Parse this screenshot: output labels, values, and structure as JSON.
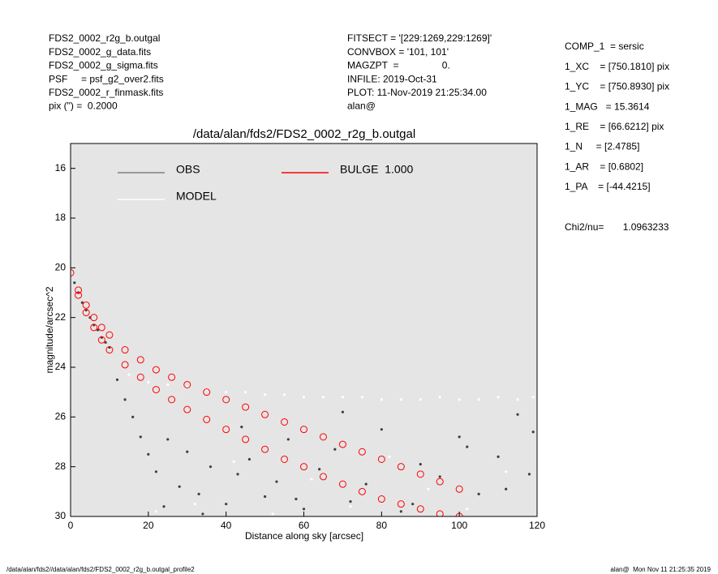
{
  "header": {
    "left": [
      "FDS2_0002_r2g_b.outgal",
      "FDS2_0002_g_data.fits",
      "FDS2_0002_g_sigma.fits",
      "PSF     = psf_g2_over2.fits",
      "FDS2_0002_r_finmask.fits",
      "pix (\") =  0.2000"
    ],
    "middle": [
      "FITSECT = '[229:1269,229:1269]'",
      "CONVBOX = '101, 101'",
      "MAGZPT  =                0.",
      "INFILE: 2019-Oct-31",
      "PLOT: 11-Nov-2019 21:25:34.00",
      "alan@"
    ],
    "right": [
      "COMP_1  = sersic",
      "1_XC    = [750.1810] pix",
      "1_YC    = [750.8930] pix",
      "1_MAG   = 15.3614",
      "1_RE    = [66.6212] pix",
      "1_N     = [2.4785]",
      "1_AR    = [0.6802]",
      "1_PA    = [-44.4215]"
    ],
    "chi2": "Chi2/nu=       1.0963233"
  },
  "chart_data": {
    "type": "scatter",
    "title": "/data/alan/fds2/FDS2_0002_r2g_b.outgal",
    "x_label": "Distance along sky [arcsec]",
    "y_label": "magnitude/arcsec^2",
    "xlim": [
      0,
      120
    ],
    "ylim": [
      30,
      15
    ],
    "xticks": [
      0,
      20,
      40,
      60,
      80,
      100,
      120
    ],
    "yticks": [
      16,
      18,
      20,
      22,
      24,
      26,
      28,
      30
    ],
    "background": "#e5e5e5",
    "series": [
      {
        "name": "OBS",
        "color": "#808080",
        "marker_color": "#404040",
        "x": [
          1,
          2,
          3,
          4,
          5,
          6,
          7,
          8,
          9,
          10,
          12,
          14,
          16,
          18,
          20,
          22,
          25,
          28,
          30,
          33,
          36,
          40,
          43,
          46,
          50,
          53,
          56,
          60,
          64,
          68,
          72,
          76,
          80,
          85,
          90,
          95,
          100,
          105,
          110,
          115,
          118,
          24,
          34,
          44,
          58,
          70,
          88,
          102,
          112,
          119
        ],
        "values": [
          20.6,
          21.0,
          21.4,
          21.7,
          22.0,
          22.3,
          22.5,
          22.8,
          23.0,
          23.2,
          24.5,
          25.3,
          26.0,
          26.8,
          27.5,
          28.2,
          26.9,
          28.8,
          27.4,
          29.1,
          28.0,
          29.5,
          28.3,
          27.7,
          29.2,
          28.6,
          26.9,
          29.7,
          28.1,
          27.3,
          29.4,
          28.7,
          26.5,
          29.8,
          27.9,
          28.4,
          26.8,
          29.1,
          27.6,
          25.9,
          28.3,
          29.6,
          29.9,
          26.4,
          29.3,
          25.8,
          29.5,
          27.2,
          28.9,
          26.6
        ]
      },
      {
        "name": "MODEL",
        "color": "#ffffff",
        "marker_color": "#ffffff",
        "x": [
          15,
          20,
          25,
          30,
          35,
          40,
          45,
          50,
          55,
          60,
          65,
          70,
          75,
          80,
          85,
          90,
          95,
          100,
          105,
          110,
          115,
          119,
          22,
          32,
          42,
          52,
          62,
          72,
          82,
          92,
          102,
          112
        ],
        "values": [
          24.3,
          24.6,
          24.7,
          24.8,
          24.9,
          25.0,
          25.0,
          25.1,
          25.1,
          25.2,
          25.2,
          25.2,
          25.2,
          25.3,
          25.3,
          25.3,
          25.2,
          25.3,
          25.3,
          25.2,
          25.3,
          25.2,
          29.8,
          29.5,
          27.8,
          29.9,
          28.5,
          29.6,
          27.6,
          28.9,
          29.7,
          28.2
        ]
      },
      {
        "name": "BULGE  1.000",
        "color": "#ff0000",
        "marker_color": "#ff0000",
        "x": [
          0,
          2,
          4,
          6,
          8,
          10,
          14,
          18,
          22,
          26,
          30,
          35,
          40,
          45,
          50,
          55,
          60,
          65,
          70,
          75,
          80,
          85,
          90,
          95,
          100,
          2,
          4,
          6,
          8,
          10,
          14,
          18,
          22,
          26,
          30,
          35,
          40,
          45,
          50,
          55,
          60,
          65,
          70,
          75,
          80,
          85,
          90,
          95,
          100
        ],
        "values": [
          20.2,
          20.9,
          21.5,
          22.0,
          22.4,
          22.7,
          23.3,
          23.7,
          24.1,
          24.4,
          24.7,
          25.0,
          25.3,
          25.6,
          25.9,
          26.2,
          26.5,
          26.8,
          27.1,
          27.4,
          27.7,
          28.0,
          28.3,
          28.6,
          28.9,
          21.1,
          21.8,
          22.4,
          22.9,
          23.3,
          23.9,
          24.4,
          24.9,
          25.3,
          25.7,
          26.1,
          26.5,
          26.9,
          27.3,
          27.7,
          28.0,
          28.4,
          28.7,
          29.0,
          29.3,
          29.5,
          29.7,
          29.9,
          30.0
        ]
      }
    ]
  },
  "footer": {
    "left": "/data/alan/fds2//data/alan/fds2/FDS2_0002_r2g_b.outgal_profile2",
    "right": "alan@  Mon Nov 11 21:25:35 2019"
  }
}
